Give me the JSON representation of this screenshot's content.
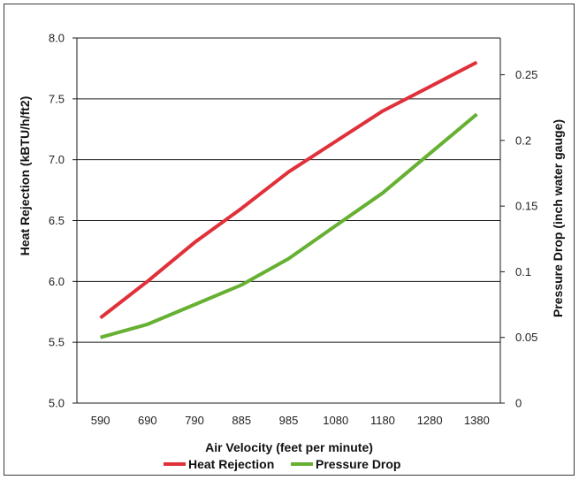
{
  "chart_data": {
    "type": "line",
    "title": "",
    "categories": [
      "590",
      "690",
      "790",
      "885",
      "985",
      "1080",
      "1180",
      "1280",
      "1380"
    ],
    "xlabel": "Air Velocity (feet per minute)",
    "ylabel_left": "Heat Rejection (kBTU/h/ft2)",
    "ylabel_right": "Pressure Drop (inch water gauge)",
    "ylim_left": [
      5.0,
      8.0
    ],
    "ylim_right": [
      0,
      0.278
    ],
    "yticks_left": [
      "5.0",
      "5.5",
      "6.0",
      "6.5",
      "7.0",
      "7.5",
      "8.0"
    ],
    "yticks_right": [
      "0",
      "0.05",
      "0.1",
      "0.15",
      "0.2",
      "0.25"
    ],
    "yticks_right_values": [
      0,
      0.05,
      0.1,
      0.15,
      0.2,
      0.25
    ],
    "grid": true,
    "legend_position": "bottom",
    "series": [
      {
        "name": "Heat Rejection",
        "axis": "left",
        "color": "#e0303a",
        "values": [
          5.7,
          6.0,
          6.32,
          6.6,
          6.9,
          7.15,
          7.4,
          7.6,
          7.8
        ]
      },
      {
        "name": "Pressure Drop",
        "axis": "right",
        "color": "#66b032",
        "values": [
          0.05,
          0.06,
          0.075,
          0.09,
          0.11,
          0.135,
          0.16,
          0.19,
          0.22
        ]
      }
    ]
  }
}
